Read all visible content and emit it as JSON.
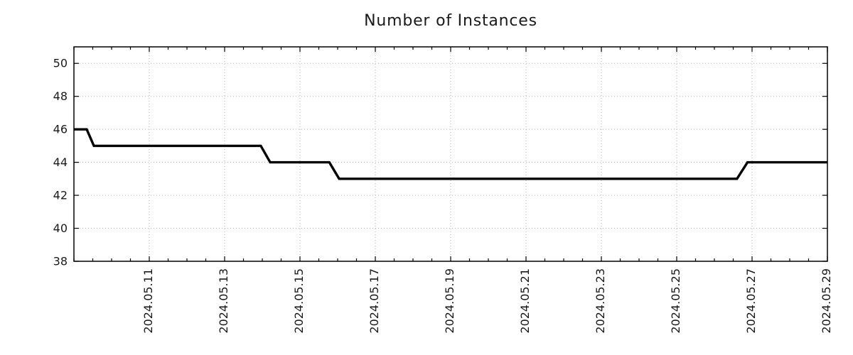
{
  "chart_data": {
    "type": "line",
    "style": "step-line",
    "title": "Number of Instances",
    "legend": "none",
    "grid": "on",
    "colors": {
      "line": "#000000",
      "grid": "#b8b8b8",
      "axis": "#000000",
      "text": "#1a1a1a",
      "background": "#ffffff"
    },
    "x_axis": {
      "unit": "days since 2024-05-09 00:00",
      "range": [
        0,
        20
      ],
      "minor_tick_step": 0.5,
      "major_ticks": [
        {
          "d": 2,
          "label": "2024.05.11"
        },
        {
          "d": 4,
          "label": "2024.05.13"
        },
        {
          "d": 6,
          "label": "2024.05.15"
        },
        {
          "d": 8,
          "label": "2024.05.17"
        },
        {
          "d": 10,
          "label": "2024.05.19"
        },
        {
          "d": 12,
          "label": "2024.05.21"
        },
        {
          "d": 14,
          "label": "2024.05.23"
        },
        {
          "d": 16,
          "label": "2024.05.25"
        },
        {
          "d": 18,
          "label": "2024.05.27"
        },
        {
          "d": 20,
          "label": "2024.05.29"
        }
      ]
    },
    "y_axis": {
      "label": "",
      "range": [
        38,
        51
      ],
      "major_ticks": [
        38,
        40,
        42,
        44,
        46,
        48,
        50
      ]
    },
    "series": [
      {
        "name": "instances",
        "points": [
          {
            "t": "2024-05-09 00:00",
            "d": 0.0,
            "v": 46
          },
          {
            "t": "2024-05-09 08:00",
            "d": 0.34,
            "v": 46
          },
          {
            "t": "2024-05-09 13:00",
            "d": 0.53,
            "v": 45
          },
          {
            "t": "2024-05-13 23:00",
            "d": 4.96,
            "v": 45
          },
          {
            "t": "2024-05-14 05:00",
            "d": 5.21,
            "v": 44
          },
          {
            "t": "2024-05-15 19:00",
            "d": 6.78,
            "v": 44
          },
          {
            "t": "2024-05-16 01:00",
            "d": 7.04,
            "v": 43
          },
          {
            "t": "2024-05-26 14:30",
            "d": 17.6,
            "v": 43
          },
          {
            "t": "2024-05-26 21:00",
            "d": 17.88,
            "v": 44
          },
          {
            "t": "2024-05-29 00:00",
            "d": 20.0,
            "v": 44
          }
        ]
      }
    ]
  }
}
